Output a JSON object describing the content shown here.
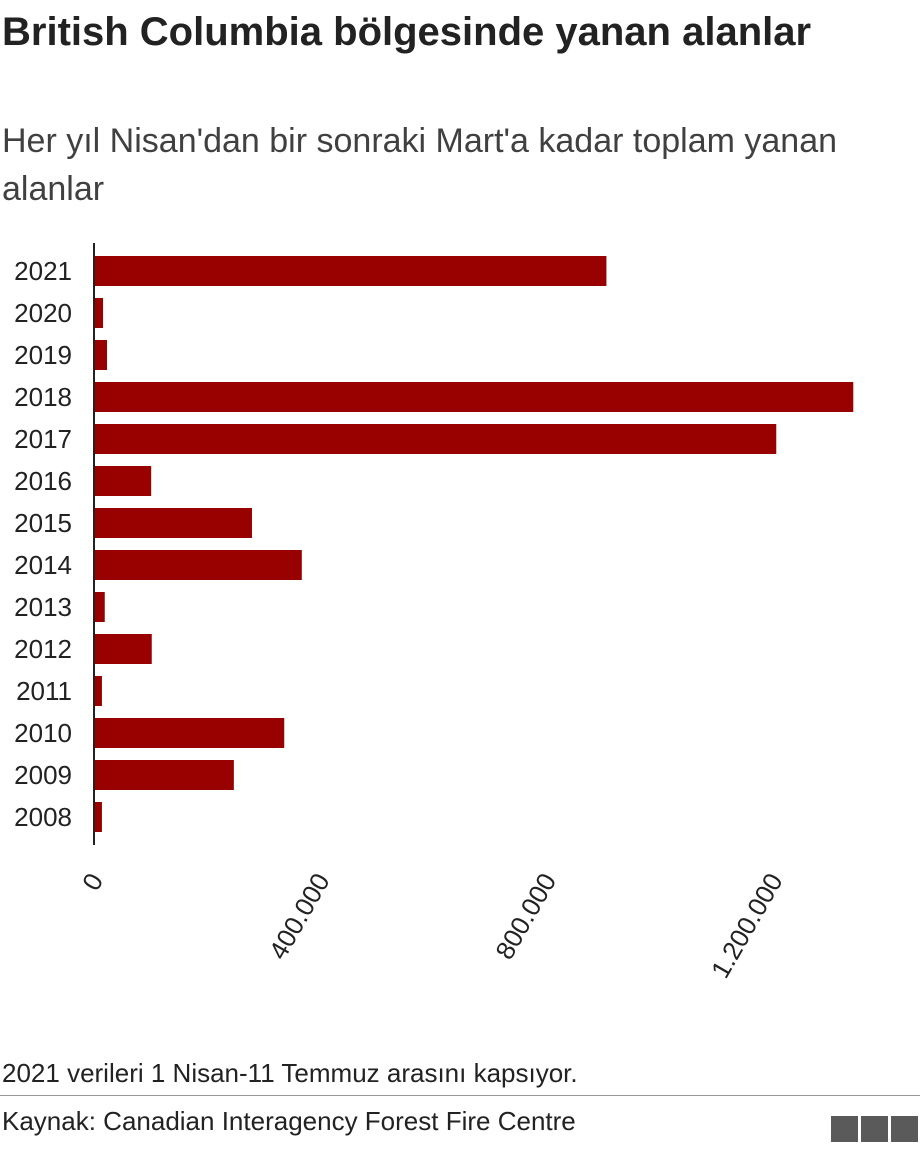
{
  "chart_data": {
    "type": "bar",
    "orientation": "horizontal",
    "title": "British Columbia bölgesinde yanan alanlar",
    "subtitle": "Her yıl Nisan'dan bir sonraki Mart'a kadar toplam yanan alanlar",
    "categories": [
      "2021",
      "2020",
      "2019",
      "2018",
      "2017",
      "2016",
      "2015",
      "2014",
      "2013",
      "2012",
      "2011",
      "2010",
      "2009",
      "2008"
    ],
    "values": [
      905000,
      16000,
      23000,
      1341000,
      1205000,
      101000,
      279000,
      367000,
      19000,
      102000,
      14000,
      336000,
      247000,
      14000
    ],
    "color": "#990000",
    "xlim": [
      0,
      1450000
    ],
    "xticks": [
      0,
      {
        "value": 400000,
        "label": "400.000"
      },
      {
        "value": 800000,
        "label": "800.000"
      },
      {
        "value": 1200000,
        "label": "1.200.000"
      }
    ],
    "note": "2021 verileri 1 Nisan-11 Temmuz arasını kapsıyor.",
    "source": "Kaynak: Canadian Interagency Forest Fire Centre"
  }
}
